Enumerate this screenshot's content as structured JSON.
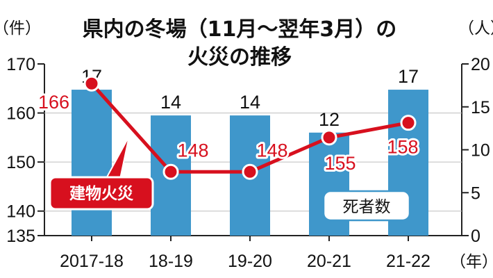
{
  "chart_data": {
    "type": "bar+line",
    "title": [
      "県内の冬場（11月～翌年3月）の",
      "火災の推移"
    ],
    "categories": [
      "2017-18",
      "18-19",
      "19-20",
      "20-21",
      "21-22"
    ],
    "x_unit": "（年）",
    "left_axis": {
      "unit": "（件）",
      "ticks": [
        "170",
        "160",
        "150",
        "140",
        "135"
      ],
      "range": [
        135,
        170
      ]
    },
    "right_axis": {
      "unit": "（人）",
      "ticks": [
        "20",
        "15",
        "10",
        "5",
        "0"
      ],
      "range": [
        0,
        20
      ]
    },
    "series": [
      {
        "name": "死者数",
        "kind": "bar",
        "axis": "right",
        "values": [
          17,
          14,
          14,
          12,
          17
        ],
        "labels": [
          "17",
          "14",
          "14",
          "12",
          "17"
        ],
        "color": "#3f97cb"
      },
      {
        "name": "建物火災",
        "kind": "line",
        "axis": "left",
        "values": [
          166,
          148,
          148,
          155,
          158
        ],
        "labels": [
          "166",
          "148",
          "148",
          "155",
          "158"
        ],
        "color": "#d7101e"
      }
    ]
  }
}
